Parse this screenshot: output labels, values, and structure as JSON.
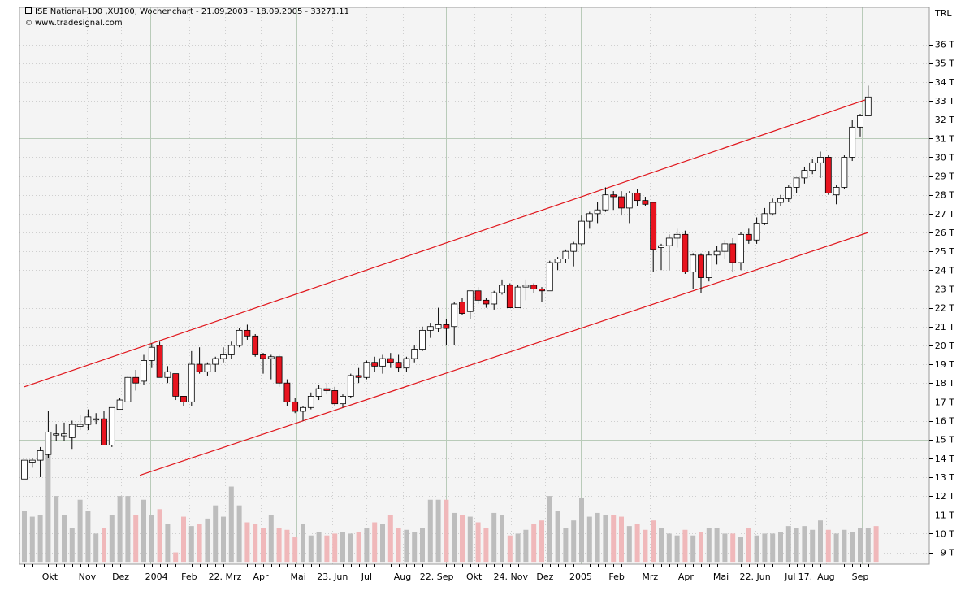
{
  "header": {
    "title": "ISE National-100 ,XU100, Wochenchart - 21.09.2003 - 18.09.2005 - 33271.11",
    "source_symbol": "©",
    "source": "www.tradesignal.com",
    "currency": "TRL"
  },
  "colors": {
    "background": "#ffffff",
    "plot_background": "#f4f4f4",
    "grid_major": "#b9cbb9",
    "grid_minor": "#cfcfcf",
    "up_candle": "#ffffff",
    "down_candle": "#e8141f",
    "channel": "#e0161c",
    "volume_up": "#bdbdbd",
    "volume_down": "#f0b8ba"
  },
  "chart_data": {
    "type": "candlestick",
    "title": "ISE National-100 ,XU100, Wochenchart - 21.09.2003 - 18.09.2005 - 33271.11",
    "y_unit": "TRL",
    "ylim": [
      8.5,
      37.6
    ],
    "y_ticks": [
      "9 T",
      "10 T",
      "11 T",
      "12 T",
      "13 T",
      "14 T",
      "15 T",
      "16 T",
      "17 T",
      "18 T",
      "19 T",
      "20 T",
      "21 T",
      "22 T",
      "23 T",
      "24 T",
      "25 T",
      "26 T",
      "27 T",
      "28 T",
      "29 T",
      "30 T",
      "31 T",
      "32 T",
      "33 T",
      "34 T",
      "35 T",
      "36 T"
    ],
    "x_labels": [
      "Okt",
      "Nov",
      "Dez",
      "2004",
      "Feb",
      "22. Mrz",
      "Apr",
      "Mai",
      "23. Jun",
      "Jul",
      "Aug",
      "22. Sep",
      "Okt",
      "24. Nov",
      "Dez",
      "2005",
      "Feb",
      "Mrz",
      "Apr",
      "Mai",
      "22. Jun",
      "Jul",
      "17.",
      "Aug",
      "Sep"
    ],
    "x_label_index": [
      3.2,
      7.9,
      12.1,
      16.6,
      20.7,
      25.2,
      29.7,
      34.4,
      38.7,
      43.0,
      47.5,
      51.8,
      56.5,
      61.1,
      65.4,
      69.9,
      74.4,
      78.6,
      83.1,
      87.5,
      91.8,
      96.2,
      98.1,
      100.7,
      105.0
    ],
    "grid_major_index": [
      15.8,
      34.2,
      53.0,
      69.9,
      88.0,
      105.2
    ],
    "grid_minor_index": [
      3.2,
      7.9,
      12.1,
      20.7,
      25.2,
      29.7,
      38.7,
      43.0,
      47.5,
      56.5,
      61.1,
      65.4,
      74.4,
      78.6,
      83.1,
      91.8,
      96.2,
      100.7
    ],
    "grid_major_value": [
      15,
      23,
      31
    ],
    "channel_upper": {
      "from": [
        0,
        17.8
      ],
      "to": [
        106,
        33.1
      ]
    },
    "channel_lower": {
      "from": [
        14.5,
        13.1
      ],
      "to": [
        106,
        26.0
      ]
    },
    "candles": [
      {
        "o": 12.9,
        "h": 13.9,
        "l": 12.9,
        "c": 13.9
      },
      {
        "o": 13.8,
        "h": 14.0,
        "l": 13.5,
        "c": 13.9
      },
      {
        "o": 13.9,
        "h": 14.6,
        "l": 13.0,
        "c": 14.4
      },
      {
        "o": 14.2,
        "h": 16.5,
        "l": 14.0,
        "c": 15.4
      },
      {
        "o": 15.3,
        "h": 15.8,
        "l": 14.9,
        "c": 15.3
      },
      {
        "o": 15.2,
        "h": 15.9,
        "l": 14.9,
        "c": 15.3
      },
      {
        "o": 15.1,
        "h": 16.0,
        "l": 14.5,
        "c": 15.8
      },
      {
        "o": 15.7,
        "h": 16.3,
        "l": 15.5,
        "c": 15.8
      },
      {
        "o": 15.8,
        "h": 16.6,
        "l": 15.5,
        "c": 16.2
      },
      {
        "o": 16.1,
        "h": 16.4,
        "l": 15.8,
        "c": 16.1
      },
      {
        "o": 16.1,
        "h": 16.5,
        "l": 14.7,
        "c": 14.7
      },
      {
        "o": 14.7,
        "h": 16.7,
        "l": 14.6,
        "c": 16.7
      },
      {
        "o": 16.6,
        "h": 17.2,
        "l": 16.6,
        "c": 17.1
      },
      {
        "o": 17.0,
        "h": 18.4,
        "l": 17.0,
        "c": 18.3
      },
      {
        "o": 18.3,
        "h": 18.7,
        "l": 17.6,
        "c": 18.0
      },
      {
        "o": 18.1,
        "h": 19.5,
        "l": 17.9,
        "c": 19.2
      },
      {
        "o": 19.2,
        "h": 20.1,
        "l": 18.8,
        "c": 19.9
      },
      {
        "o": 20.0,
        "h": 20.2,
        "l": 18.3,
        "c": 18.3
      },
      {
        "o": 18.3,
        "h": 18.9,
        "l": 18.0,
        "c": 18.6
      },
      {
        "o": 18.5,
        "h": 18.5,
        "l": 17.1,
        "c": 17.3
      },
      {
        "o": 17.3,
        "h": 17.3,
        "l": 16.8,
        "c": 17.0
      },
      {
        "o": 17.0,
        "h": 19.7,
        "l": 16.8,
        "c": 19.0
      },
      {
        "o": 19.0,
        "h": 19.9,
        "l": 18.5,
        "c": 18.6
      },
      {
        "o": 18.6,
        "h": 19.1,
        "l": 18.4,
        "c": 19.0
      },
      {
        "o": 19.0,
        "h": 19.4,
        "l": 18.6,
        "c": 19.3
      },
      {
        "o": 19.3,
        "h": 19.9,
        "l": 19.1,
        "c": 19.5
      },
      {
        "o": 19.5,
        "h": 20.2,
        "l": 19.3,
        "c": 20.0
      },
      {
        "o": 20.0,
        "h": 20.9,
        "l": 19.9,
        "c": 20.8
      },
      {
        "o": 20.8,
        "h": 21.1,
        "l": 20.3,
        "c": 20.5
      },
      {
        "o": 20.5,
        "h": 20.6,
        "l": 19.4,
        "c": 19.5
      },
      {
        "o": 19.5,
        "h": 19.6,
        "l": 18.5,
        "c": 19.3
      },
      {
        "o": 19.3,
        "h": 19.5,
        "l": 18.2,
        "c": 19.4
      },
      {
        "o": 19.4,
        "h": 19.5,
        "l": 17.8,
        "c": 18.0
      },
      {
        "o": 18.0,
        "h": 18.2,
        "l": 16.8,
        "c": 17.0
      },
      {
        "o": 17.0,
        "h": 17.2,
        "l": 16.4,
        "c": 16.5
      },
      {
        "o": 16.5,
        "h": 16.8,
        "l": 16.0,
        "c": 16.7
      },
      {
        "o": 16.7,
        "h": 17.5,
        "l": 16.6,
        "c": 17.3
      },
      {
        "o": 17.3,
        "h": 17.9,
        "l": 17.1,
        "c": 17.7
      },
      {
        "o": 17.7,
        "h": 18.0,
        "l": 17.4,
        "c": 17.6
      },
      {
        "o": 17.6,
        "h": 17.8,
        "l": 16.8,
        "c": 16.9
      },
      {
        "o": 16.9,
        "h": 17.4,
        "l": 16.7,
        "c": 17.3
      },
      {
        "o": 17.3,
        "h": 18.5,
        "l": 17.2,
        "c": 18.4
      },
      {
        "o": 18.4,
        "h": 18.8,
        "l": 18.0,
        "c": 18.3
      },
      {
        "o": 18.3,
        "h": 19.2,
        "l": 18.2,
        "c": 19.1
      },
      {
        "o": 19.1,
        "h": 19.4,
        "l": 18.6,
        "c": 18.9
      },
      {
        "o": 18.9,
        "h": 19.5,
        "l": 18.5,
        "c": 19.3
      },
      {
        "o": 19.3,
        "h": 19.6,
        "l": 18.8,
        "c": 19.1
      },
      {
        "o": 19.1,
        "h": 19.5,
        "l": 18.6,
        "c": 18.8
      },
      {
        "o": 18.8,
        "h": 19.4,
        "l": 18.6,
        "c": 19.3
      },
      {
        "o": 19.3,
        "h": 20.0,
        "l": 19.1,
        "c": 19.8
      },
      {
        "o": 19.8,
        "h": 21.0,
        "l": 19.7,
        "c": 20.8
      },
      {
        "o": 20.8,
        "h": 21.2,
        "l": 20.4,
        "c": 21.0
      },
      {
        "o": 20.9,
        "h": 22.0,
        "l": 20.7,
        "c": 21.1
      },
      {
        "o": 21.1,
        "h": 21.4,
        "l": 20.0,
        "c": 20.9
      },
      {
        "o": 21.0,
        "h": 22.3,
        "l": 20.0,
        "c": 22.2
      },
      {
        "o": 22.3,
        "h": 22.5,
        "l": 21.6,
        "c": 21.7
      },
      {
        "o": 21.8,
        "h": 22.8,
        "l": 21.4,
        "c": 22.9
      },
      {
        "o": 22.9,
        "h": 23.1,
        "l": 22.2,
        "c": 22.4
      },
      {
        "o": 22.4,
        "h": 22.5,
        "l": 22.0,
        "c": 22.2
      },
      {
        "o": 22.2,
        "h": 22.9,
        "l": 21.9,
        "c": 22.8
      },
      {
        "o": 22.8,
        "h": 23.5,
        "l": 22.7,
        "c": 23.2
      },
      {
        "o": 23.2,
        "h": 23.3,
        "l": 22.0,
        "c": 22.0
      },
      {
        "o": 22.0,
        "h": 23.2,
        "l": 22.0,
        "c": 23.1
      },
      {
        "o": 23.1,
        "h": 23.5,
        "l": 22.4,
        "c": 23.2
      },
      {
        "o": 23.2,
        "h": 23.3,
        "l": 22.8,
        "c": 23.0
      },
      {
        "o": 23.0,
        "h": 23.1,
        "l": 22.3,
        "c": 22.9
      },
      {
        "o": 22.9,
        "h": 24.5,
        "l": 22.9,
        "c": 24.4
      },
      {
        "o": 24.4,
        "h": 24.7,
        "l": 24.0,
        "c": 24.6
      },
      {
        "o": 24.6,
        "h": 25.1,
        "l": 24.4,
        "c": 25.0
      },
      {
        "o": 25.0,
        "h": 25.5,
        "l": 24.2,
        "c": 25.4
      },
      {
        "o": 25.4,
        "h": 26.9,
        "l": 25.3,
        "c": 26.6
      },
      {
        "o": 26.6,
        "h": 27.1,
        "l": 26.2,
        "c": 27.0
      },
      {
        "o": 27.0,
        "h": 27.6,
        "l": 26.5,
        "c": 27.2
      },
      {
        "o": 27.2,
        "h": 28.4,
        "l": 27.1,
        "c": 28.0
      },
      {
        "o": 28.0,
        "h": 28.2,
        "l": 27.2,
        "c": 27.9
      },
      {
        "o": 27.9,
        "h": 28.2,
        "l": 26.9,
        "c": 27.3
      },
      {
        "o": 27.3,
        "h": 28.2,
        "l": 26.5,
        "c": 28.1
      },
      {
        "o": 28.1,
        "h": 28.3,
        "l": 27.4,
        "c": 27.7
      },
      {
        "o": 27.7,
        "h": 27.9,
        "l": 27.4,
        "c": 27.5
      },
      {
        "o": 27.6,
        "h": 27.6,
        "l": 23.9,
        "c": 25.1
      },
      {
        "o": 25.2,
        "h": 25.4,
        "l": 24.0,
        "c": 25.3
      },
      {
        "o": 25.3,
        "h": 25.9,
        "l": 24.0,
        "c": 25.7
      },
      {
        "o": 25.7,
        "h": 26.2,
        "l": 25.2,
        "c": 25.9
      },
      {
        "o": 25.9,
        "h": 26.1,
        "l": 23.8,
        "c": 23.9
      },
      {
        "o": 23.9,
        "h": 24.9,
        "l": 23.0,
        "c": 24.8
      },
      {
        "o": 24.8,
        "h": 24.9,
        "l": 22.8,
        "c": 23.6
      },
      {
        "o": 23.6,
        "h": 25.0,
        "l": 23.4,
        "c": 24.8
      },
      {
        "o": 24.8,
        "h": 25.3,
        "l": 24.3,
        "c": 25.0
      },
      {
        "o": 25.0,
        "h": 25.6,
        "l": 24.6,
        "c": 25.4
      },
      {
        "o": 25.4,
        "h": 25.7,
        "l": 23.9,
        "c": 24.4
      },
      {
        "o": 24.4,
        "h": 26.0,
        "l": 24.0,
        "c": 25.9
      },
      {
        "o": 25.9,
        "h": 26.2,
        "l": 25.4,
        "c": 25.6
      },
      {
        "o": 25.6,
        "h": 26.8,
        "l": 25.4,
        "c": 26.5
      },
      {
        "o": 26.5,
        "h": 27.3,
        "l": 26.4,
        "c": 27.0
      },
      {
        "o": 27.0,
        "h": 27.8,
        "l": 26.9,
        "c": 27.6
      },
      {
        "o": 27.6,
        "h": 28.0,
        "l": 27.4,
        "c": 27.8
      },
      {
        "o": 27.8,
        "h": 28.5,
        "l": 27.6,
        "c": 28.4
      },
      {
        "o": 28.4,
        "h": 28.9,
        "l": 28.1,
        "c": 28.9
      },
      {
        "o": 28.9,
        "h": 29.5,
        "l": 28.6,
        "c": 29.3
      },
      {
        "o": 29.3,
        "h": 29.9,
        "l": 29.1,
        "c": 29.7
      },
      {
        "o": 29.7,
        "h": 30.3,
        "l": 28.9,
        "c": 30.0
      },
      {
        "o": 30.0,
        "h": 30.1,
        "l": 28.0,
        "c": 28.1
      },
      {
        "o": 28.0,
        "h": 28.5,
        "l": 27.5,
        "c": 28.4
      },
      {
        "o": 28.4,
        "h": 30.1,
        "l": 28.3,
        "c": 30.0
      },
      {
        "o": 30.0,
        "h": 32.0,
        "l": 29.8,
        "c": 31.6
      },
      {
        "o": 31.6,
        "h": 32.3,
        "l": 31.1,
        "c": 32.2
      },
      {
        "o": 32.2,
        "h": 33.8,
        "l": 32.2,
        "c": 33.2
      }
    ],
    "volume": [
      11.2,
      10.9,
      11.0,
      14.7,
      12.0,
      11.0,
      10.3,
      11.8,
      11.2,
      10.0,
      10.3,
      11.0,
      12.0,
      12.0,
      11.0,
      11.8,
      11.0,
      11.3,
      10.5,
      9.0,
      10.9,
      10.4,
      10.5,
      10.8,
      11.5,
      10.9,
      12.5,
      11.5,
      10.6,
      10.5,
      10.3,
      11.0,
      10.3,
      10.2,
      9.8,
      10.5,
      9.9,
      10.1,
      9.9,
      10.0,
      10.1,
      10.0,
      10.1,
      10.3,
      10.6,
      10.5,
      11.0,
      10.3,
      10.2,
      10.1,
      10.3,
      11.8,
      11.8,
      11.8,
      11.1,
      11.0,
      10.9,
      10.6,
      10.3,
      11.1,
      11.0,
      9.9,
      10.0,
      10.2,
      10.5,
      10.7,
      12.0,
      11.2,
      10.3,
      10.7,
      11.9,
      10.9,
      11.1,
      11.0,
      11.0,
      10.9,
      10.4,
      10.5,
      10.2,
      10.7,
      10.3,
      10.0,
      9.9,
      10.2,
      9.9,
      10.1,
      10.3,
      10.3,
      10.0,
      10.0,
      9.8,
      10.3,
      9.9,
      10.0,
      10.0,
      10.1,
      10.4,
      10.3,
      10.4,
      10.2,
      10.7,
      10.2,
      10.0,
      10.2,
      10.1,
      10.3,
      10.3,
      10.4
    ],
    "vol_baseline": 8.5
  }
}
